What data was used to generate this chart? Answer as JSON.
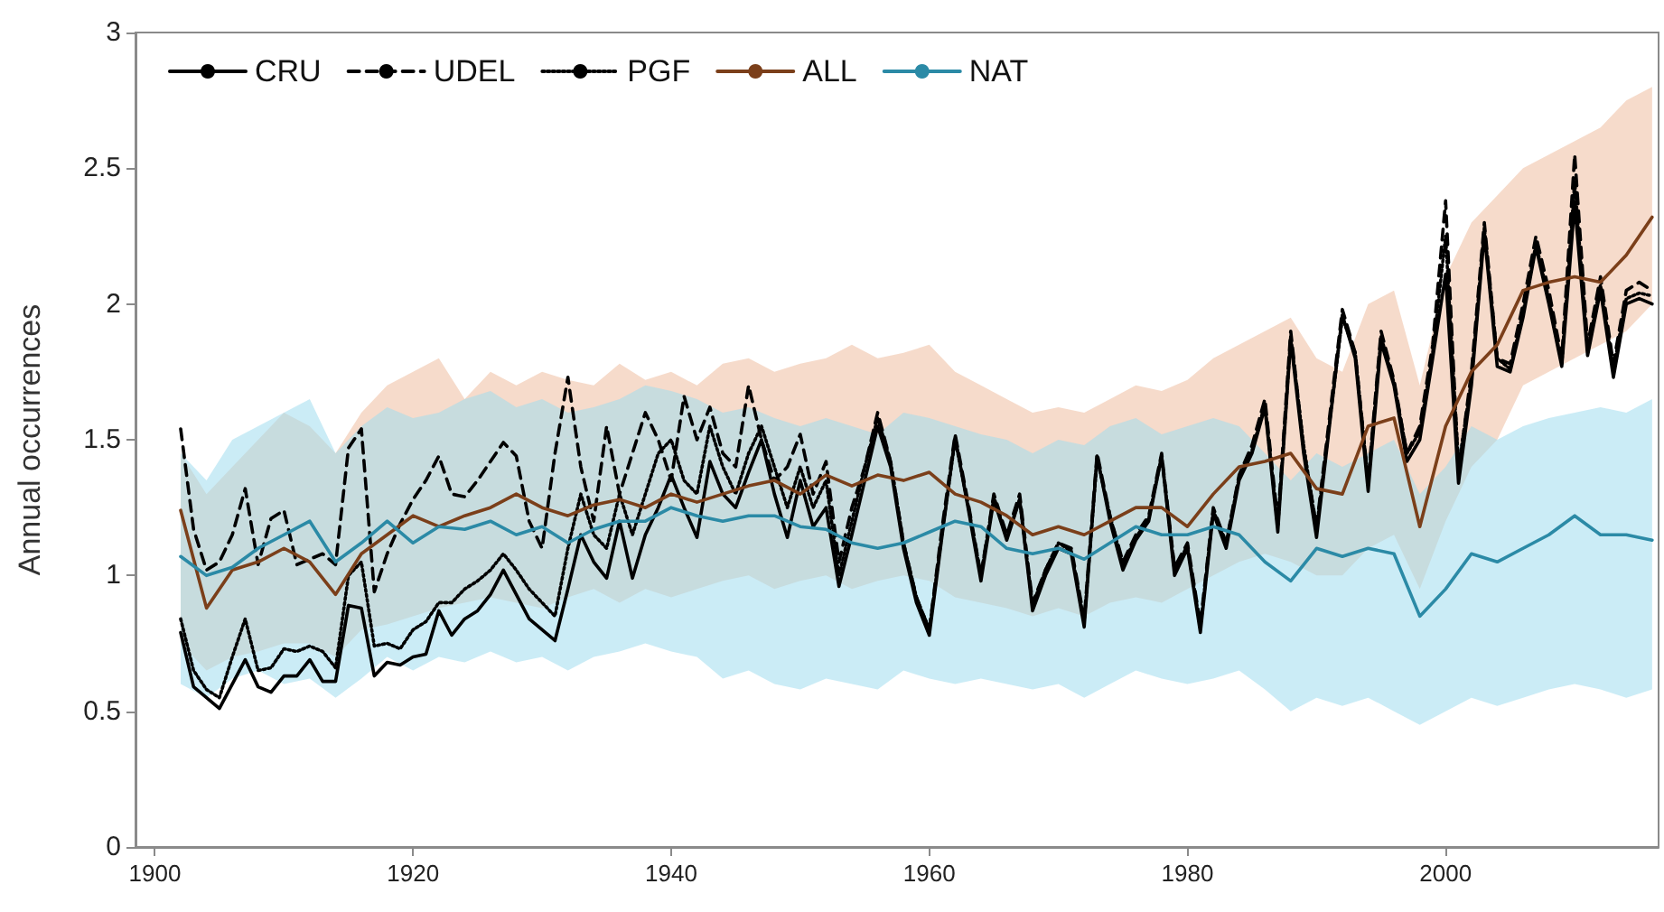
{
  "chart_data": {
    "type": "line",
    "ylabel": "Annual occurrences",
    "xlim": [
      1898.5,
      2016.5
    ],
    "xticks": [
      1900,
      1920,
      1940,
      1960,
      1980,
      2000
    ],
    "ylim": [
      0,
      3
    ],
    "yticks": [
      0,
      0.5,
      1,
      1.5,
      2,
      2.5,
      3
    ],
    "grid": false,
    "legend": "top left",
    "marker": "none",
    "x": [
      1902,
      1903,
      1904,
      1905,
      1906,
      1907,
      1908,
      1909,
      1910,
      1911,
      1912,
      1913,
      1914,
      1915,
      1916,
      1917,
      1918,
      1919,
      1920,
      1921,
      1922,
      1923,
      1924,
      1925,
      1926,
      1927,
      1928,
      1929,
      1930,
      1931,
      1932,
      1933,
      1934,
      1935,
      1936,
      1937,
      1938,
      1939,
      1940,
      1941,
      1942,
      1943,
      1944,
      1945,
      1946,
      1947,
      1948,
      1949,
      1950,
      1951,
      1952,
      1953,
      1954,
      1955,
      1956,
      1957,
      1958,
      1959,
      1960,
      1961,
      1962,
      1963,
      1964,
      1965,
      1966,
      1967,
      1968,
      1969,
      1970,
      1971,
      1972,
      1973,
      1974,
      1975,
      1976,
      1977,
      1978,
      1979,
      1980,
      1981,
      1982,
      1983,
      1984,
      1985,
      1986,
      1987,
      1988,
      1989,
      1990,
      1991,
      1992,
      1993,
      1994,
      1995,
      1996,
      1997,
      1998,
      1999,
      2000,
      2001,
      2002,
      2003,
      2004,
      2005,
      2006,
      2007,
      2008,
      2009,
      2010,
      2011,
      2012,
      2013,
      2014,
      2015,
      2016
    ],
    "series": [
      {
        "name": "CRU",
        "color": "#000000",
        "line_style": "solid",
        "values": [
          0.79,
          0.59,
          0.55,
          0.51,
          0.6,
          0.69,
          0.59,
          0.57,
          0.63,
          0.63,
          0.69,
          0.61,
          0.61,
          0.89,
          0.88,
          0.63,
          0.68,
          0.67,
          0.7,
          0.71,
          0.87,
          0.78,
          0.84,
          0.87,
          0.93,
          1.02,
          0.93,
          0.84,
          0.8,
          0.76,
          0.95,
          1.15,
          1.05,
          0.99,
          1.2,
          0.99,
          1.15,
          1.25,
          1.37,
          1.25,
          1.14,
          1.42,
          1.3,
          1.25,
          1.38,
          1.5,
          1.3,
          1.14,
          1.35,
          1.18,
          1.25,
          0.96,
          1.15,
          1.35,
          1.55,
          1.4,
          1.1,
          0.9,
          0.78,
          1.15,
          1.51,
          1.25,
          0.98,
          1.28,
          1.13,
          1.28,
          0.87,
          1.0,
          1.1,
          1.08,
          0.81,
          1.44,
          1.2,
          1.02,
          1.13,
          1.2,
          1.44,
          1.0,
          1.1,
          0.79,
          1.23,
          1.1,
          1.35,
          1.45,
          1.62,
          1.16,
          1.87,
          1.45,
          1.14,
          1.55,
          1.96,
          1.8,
          1.31,
          1.86,
          1.7,
          1.42,
          1.5,
          1.8,
          2.11,
          1.34,
          1.7,
          2.26,
          1.77,
          1.75,
          1.95,
          2.21,
          2.0,
          1.77,
          2.37,
          1.81,
          2.05,
          1.73,
          2.0,
          2.02,
          2.0
        ]
      },
      {
        "name": "UDEL",
        "color": "#000000",
        "line_style": "dashed",
        "values": [
          1.54,
          1.17,
          1.02,
          1.05,
          1.15,
          1.32,
          1.04,
          1.21,
          1.24,
          1.04,
          1.06,
          1.08,
          1.04,
          1.47,
          1.54,
          0.94,
          1.08,
          1.19,
          1.28,
          1.35,
          1.44,
          1.3,
          1.29,
          1.35,
          1.42,
          1.49,
          1.44,
          1.2,
          1.1,
          1.45,
          1.73,
          1.4,
          1.2,
          1.55,
          1.3,
          1.45,
          1.6,
          1.5,
          1.35,
          1.66,
          1.5,
          1.62,
          1.45,
          1.4,
          1.7,
          1.5,
          1.35,
          1.4,
          1.52,
          1.3,
          1.42,
          1.05,
          1.25,
          1.4,
          1.6,
          1.42,
          1.12,
          0.92,
          0.8,
          1.18,
          1.52,
          1.27,
          1.0,
          1.3,
          1.15,
          1.3,
          0.9,
          1.02,
          1.12,
          1.1,
          0.84,
          1.45,
          1.22,
          1.05,
          1.15,
          1.22,
          1.45,
          1.03,
          1.12,
          0.82,
          1.25,
          1.12,
          1.37,
          1.48,
          1.65,
          1.2,
          1.9,
          1.47,
          1.18,
          1.58,
          1.98,
          1.82,
          1.35,
          1.9,
          1.72,
          1.45,
          1.55,
          1.85,
          2.38,
          1.38,
          1.75,
          2.3,
          1.8,
          1.78,
          2.0,
          2.25,
          2.05,
          1.8,
          2.55,
          1.85,
          2.1,
          1.78,
          2.05,
          2.08,
          2.05
        ]
      },
      {
        "name": "PGF",
        "color": "#000000",
        "line_style": "dotted",
        "values": [
          0.84,
          0.65,
          0.58,
          0.55,
          0.7,
          0.84,
          0.65,
          0.66,
          0.73,
          0.72,
          0.74,
          0.72,
          0.66,
          1.0,
          1.05,
          0.74,
          0.75,
          0.73,
          0.8,
          0.83,
          0.9,
          0.9,
          0.95,
          0.98,
          1.02,
          1.08,
          1.02,
          0.95,
          0.9,
          0.85,
          1.1,
          1.3,
          1.15,
          1.1,
          1.3,
          1.15,
          1.3,
          1.45,
          1.5,
          1.35,
          1.3,
          1.55,
          1.4,
          1.3,
          1.45,
          1.55,
          1.4,
          1.25,
          1.4,
          1.25,
          1.35,
          1.0,
          1.2,
          1.4,
          1.58,
          1.42,
          1.12,
          0.92,
          0.8,
          1.16,
          1.5,
          1.26,
          1.0,
          1.29,
          1.14,
          1.28,
          0.89,
          1.02,
          1.12,
          1.09,
          0.83,
          1.43,
          1.22,
          1.04,
          1.14,
          1.21,
          1.44,
          1.02,
          1.11,
          0.81,
          1.24,
          1.12,
          1.36,
          1.46,
          1.63,
          1.18,
          1.88,
          1.48,
          1.17,
          1.56,
          1.95,
          1.82,
          1.34,
          1.88,
          1.71,
          1.45,
          1.53,
          1.82,
          2.25,
          1.4,
          1.72,
          2.28,
          1.8,
          1.76,
          1.97,
          2.22,
          2.02,
          1.78,
          2.45,
          1.83,
          2.07,
          1.76,
          2.02,
          2.04,
          2.03
        ]
      },
      {
        "name": "ALL",
        "color": "#7b3f1a",
        "line_style": "solid",
        "x": [
          1902,
          1904,
          1906,
          1908,
          1910,
          1912,
          1914,
          1916,
          1918,
          1920,
          1922,
          1924,
          1926,
          1928,
          1930,
          1932,
          1934,
          1936,
          1938,
          1940,
          1942,
          1944,
          1946,
          1948,
          1950,
          1952,
          1954,
          1956,
          1958,
          1960,
          1962,
          1964,
          1966,
          1968,
          1970,
          1972,
          1974,
          1976,
          1978,
          1980,
          1982,
          1984,
          1986,
          1988,
          1990,
          1992,
          1994,
          1996,
          1998,
          2000,
          2002,
          2004,
          2006,
          2008,
          2010,
          2012,
          2014,
          2016
        ],
        "values": [
          1.24,
          0.88,
          1.02,
          1.05,
          1.1,
          1.05,
          0.93,
          1.08,
          1.15,
          1.22,
          1.18,
          1.22,
          1.25,
          1.3,
          1.25,
          1.22,
          1.26,
          1.28,
          1.25,
          1.3,
          1.27,
          1.3,
          1.33,
          1.35,
          1.3,
          1.37,
          1.33,
          1.37,
          1.35,
          1.38,
          1.3,
          1.27,
          1.22,
          1.15,
          1.18,
          1.15,
          1.2,
          1.25,
          1.25,
          1.18,
          1.3,
          1.4,
          1.42,
          1.45,
          1.32,
          1.3,
          1.55,
          1.58,
          1.18,
          1.55,
          1.75,
          1.85,
          2.05,
          2.08,
          2.1,
          2.08,
          2.18,
          2.32
        ],
        "lower": [
          0.75,
          0.65,
          0.7,
          0.72,
          0.75,
          0.75,
          0.7,
          0.8,
          0.82,
          0.85,
          0.88,
          0.9,
          0.92,
          0.9,
          0.88,
          0.92,
          0.95,
          0.9,
          0.95,
          0.92,
          0.95,
          0.98,
          1.0,
          0.95,
          0.98,
          1.0,
          0.95,
          0.98,
          1.0,
          0.98,
          0.92,
          0.9,
          0.88,
          0.85,
          0.88,
          0.85,
          0.9,
          0.92,
          0.9,
          0.95,
          1.0,
          1.05,
          1.08,
          1.05,
          1.0,
          1.0,
          1.1,
          1.15,
          0.95,
          1.2,
          1.4,
          1.5,
          1.7,
          1.75,
          1.8,
          1.85,
          1.9,
          2.0
        ],
        "upper": [
          1.45,
          1.3,
          1.4,
          1.5,
          1.6,
          1.55,
          1.45,
          1.6,
          1.7,
          1.75,
          1.8,
          1.65,
          1.75,
          1.7,
          1.75,
          1.72,
          1.7,
          1.78,
          1.72,
          1.75,
          1.7,
          1.78,
          1.8,
          1.75,
          1.78,
          1.8,
          1.85,
          1.8,
          1.82,
          1.85,
          1.75,
          1.7,
          1.65,
          1.6,
          1.62,
          1.6,
          1.65,
          1.7,
          1.68,
          1.72,
          1.8,
          1.85,
          1.9,
          1.95,
          1.8,
          1.75,
          2.0,
          2.05,
          1.7,
          2.1,
          2.3,
          2.4,
          2.5,
          2.55,
          2.6,
          2.65,
          2.75,
          2.8
        ]
      },
      {
        "name": "NAT",
        "color": "#2b8aa6",
        "line_style": "solid",
        "x": [
          1902,
          1904,
          1906,
          1908,
          1910,
          1912,
          1914,
          1916,
          1918,
          1920,
          1922,
          1924,
          1926,
          1928,
          1930,
          1932,
          1934,
          1936,
          1938,
          1940,
          1942,
          1944,
          1946,
          1948,
          1950,
          1952,
          1954,
          1956,
          1958,
          1960,
          1962,
          1964,
          1966,
          1968,
          1970,
          1972,
          1974,
          1976,
          1978,
          1980,
          1982,
          1984,
          1986,
          1988,
          1990,
          1992,
          1994,
          1996,
          1998,
          2000,
          2002,
          2004,
          2006,
          2008,
          2010,
          2012,
          2014,
          2016
        ],
        "values": [
          1.07,
          1.0,
          1.03,
          1.1,
          1.15,
          1.2,
          1.05,
          1.12,
          1.2,
          1.12,
          1.18,
          1.17,
          1.2,
          1.15,
          1.18,
          1.12,
          1.17,
          1.2,
          1.2,
          1.25,
          1.22,
          1.2,
          1.22,
          1.22,
          1.18,
          1.17,
          1.12,
          1.1,
          1.12,
          1.16,
          1.2,
          1.18,
          1.1,
          1.08,
          1.1,
          1.06,
          1.12,
          1.18,
          1.15,
          1.15,
          1.18,
          1.15,
          1.05,
          0.98,
          1.1,
          1.07,
          1.1,
          1.08,
          0.85,
          0.95,
          1.08,
          1.05,
          1.1,
          1.15,
          1.22,
          1.15,
          1.15,
          1.13
        ],
        "lower": [
          0.6,
          0.55,
          0.62,
          0.65,
          0.6,
          0.62,
          0.55,
          0.62,
          0.7,
          0.65,
          0.7,
          0.68,
          0.72,
          0.68,
          0.7,
          0.65,
          0.7,
          0.72,
          0.75,
          0.72,
          0.7,
          0.62,
          0.65,
          0.6,
          0.58,
          0.62,
          0.6,
          0.58,
          0.65,
          0.62,
          0.6,
          0.62,
          0.6,
          0.58,
          0.6,
          0.55,
          0.6,
          0.65,
          0.62,
          0.6,
          0.62,
          0.65,
          0.58,
          0.5,
          0.55,
          0.52,
          0.55,
          0.5,
          0.45,
          0.5,
          0.55,
          0.52,
          0.55,
          0.58,
          0.6,
          0.58,
          0.55,
          0.58
        ],
        "upper": [
          1.45,
          1.35,
          1.5,
          1.55,
          1.6,
          1.65,
          1.45,
          1.55,
          1.62,
          1.58,
          1.6,
          1.65,
          1.68,
          1.62,
          1.65,
          1.6,
          1.62,
          1.65,
          1.7,
          1.68,
          1.65,
          1.6,
          1.62,
          1.58,
          1.55,
          1.58,
          1.55,
          1.52,
          1.6,
          1.58,
          1.55,
          1.52,
          1.5,
          1.45,
          1.5,
          1.48,
          1.55,
          1.58,
          1.52,
          1.55,
          1.58,
          1.55,
          1.45,
          1.35,
          1.45,
          1.4,
          1.45,
          1.5,
          1.3,
          1.4,
          1.55,
          1.5,
          1.55,
          1.58,
          1.6,
          1.62,
          1.6,
          1.65
        ]
      }
    ]
  }
}
